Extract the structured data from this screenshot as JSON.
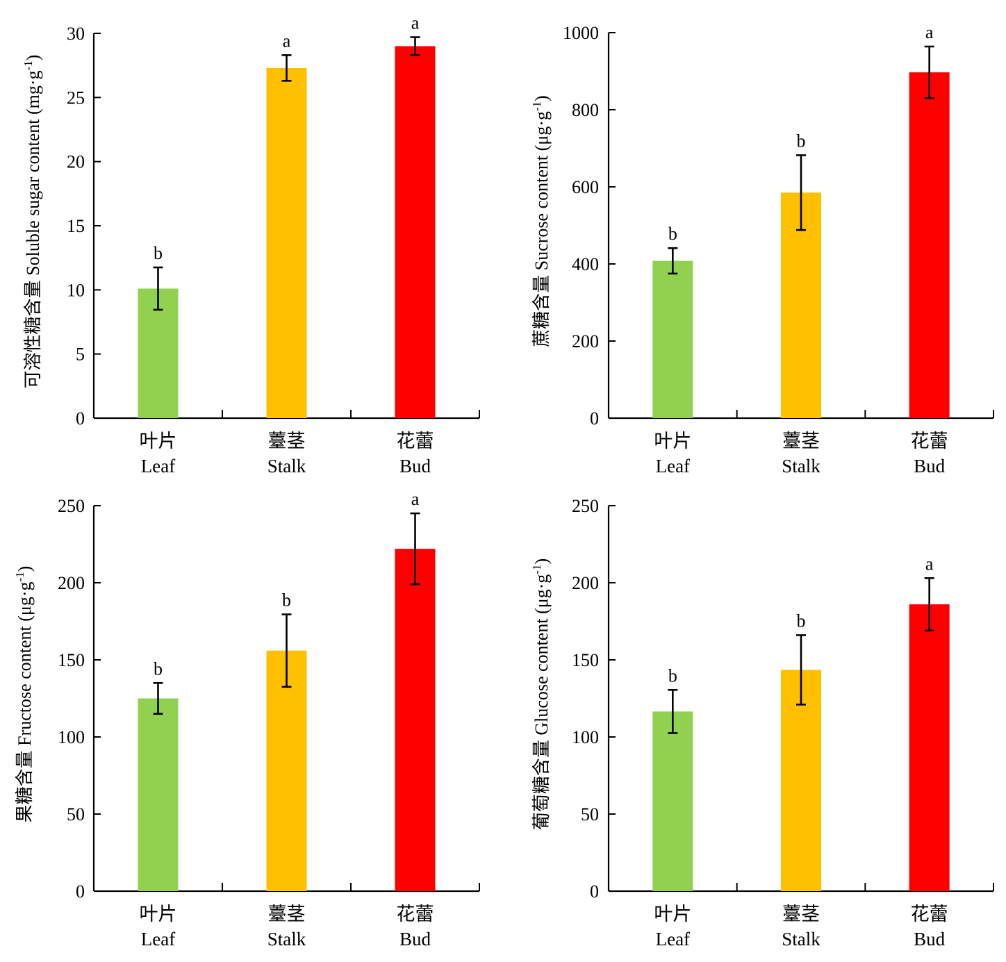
{
  "chart_data": [
    {
      "type": "bar",
      "categories": [
        {
          "zh": "叶片",
          "en": "Leaf"
        },
        {
          "zh": "薹茎",
          "en": "Stalk"
        },
        {
          "zh": "花蕾",
          "en": "Bud"
        }
      ],
      "values": [
        10.1,
        27.3,
        29.0
      ],
      "errors": [
        1.65,
        1.0,
        0.7
      ],
      "significance": [
        "b",
        "a",
        "a"
      ],
      "colors": [
        "#92d050",
        "#ffc000",
        "#ff0000"
      ],
      "ylabel_main": "可溶性糖含量 Soluble sugar content (mg·g",
      "ylabel_sup": "-1",
      "ylabel_tail": ")",
      "ylim": [
        0,
        30
      ],
      "yticks": [
        0,
        5,
        10,
        15,
        20,
        25,
        30
      ]
    },
    {
      "type": "bar",
      "categories": [
        {
          "zh": "叶片",
          "en": "Leaf"
        },
        {
          "zh": "薹茎",
          "en": "Stalk"
        },
        {
          "zh": "花蕾",
          "en": "Bud"
        }
      ],
      "values": [
        408,
        585,
        897
      ],
      "errors": [
        33,
        97,
        67
      ],
      "significance": [
        "b",
        "b",
        "a"
      ],
      "colors": [
        "#92d050",
        "#ffc000",
        "#ff0000"
      ],
      "ylabel_main": "蔗糖含量 Sucrose content (μg·g",
      "ylabel_sup": "-1",
      "ylabel_tail": ")",
      "ylim": [
        0,
        1000
      ],
      "yticks": [
        0,
        200,
        400,
        600,
        800,
        1000
      ]
    },
    {
      "type": "bar",
      "categories": [
        {
          "zh": "叶片",
          "en": "Leaf"
        },
        {
          "zh": "薹茎",
          "en": "Stalk"
        },
        {
          "zh": "花蕾",
          "en": "Bud"
        }
      ],
      "values": [
        125,
        156,
        222
      ],
      "errors": [
        10,
        23.5,
        23
      ],
      "significance": [
        "b",
        "b",
        "a"
      ],
      "colors": [
        "#92d050",
        "#ffc000",
        "#ff0000"
      ],
      "ylabel_main": "果糖含量 Fructose content (μg·g",
      "ylabel_sup": "-1",
      "ylabel_tail": ")",
      "ylim": [
        0,
        250
      ],
      "yticks": [
        0,
        50,
        100,
        150,
        200,
        250
      ]
    },
    {
      "type": "bar",
      "categories": [
        {
          "zh": "叶片",
          "en": "Leaf"
        },
        {
          "zh": "薹茎",
          "en": "Stalk"
        },
        {
          "zh": "花蕾",
          "en": "Bud"
        }
      ],
      "values": [
        116.5,
        143.5,
        186
      ],
      "errors": [
        14,
        22.5,
        17
      ],
      "significance": [
        "b",
        "b",
        "a"
      ],
      "colors": [
        "#92d050",
        "#ffc000",
        "#ff0000"
      ],
      "ylabel_main": "葡萄糖含量 Glucose content (μg·g",
      "ylabel_sup": "-1",
      "ylabel_tail": ")",
      "ylim": [
        0,
        250
      ],
      "yticks": [
        0,
        50,
        100,
        150,
        200,
        250
      ]
    }
  ]
}
